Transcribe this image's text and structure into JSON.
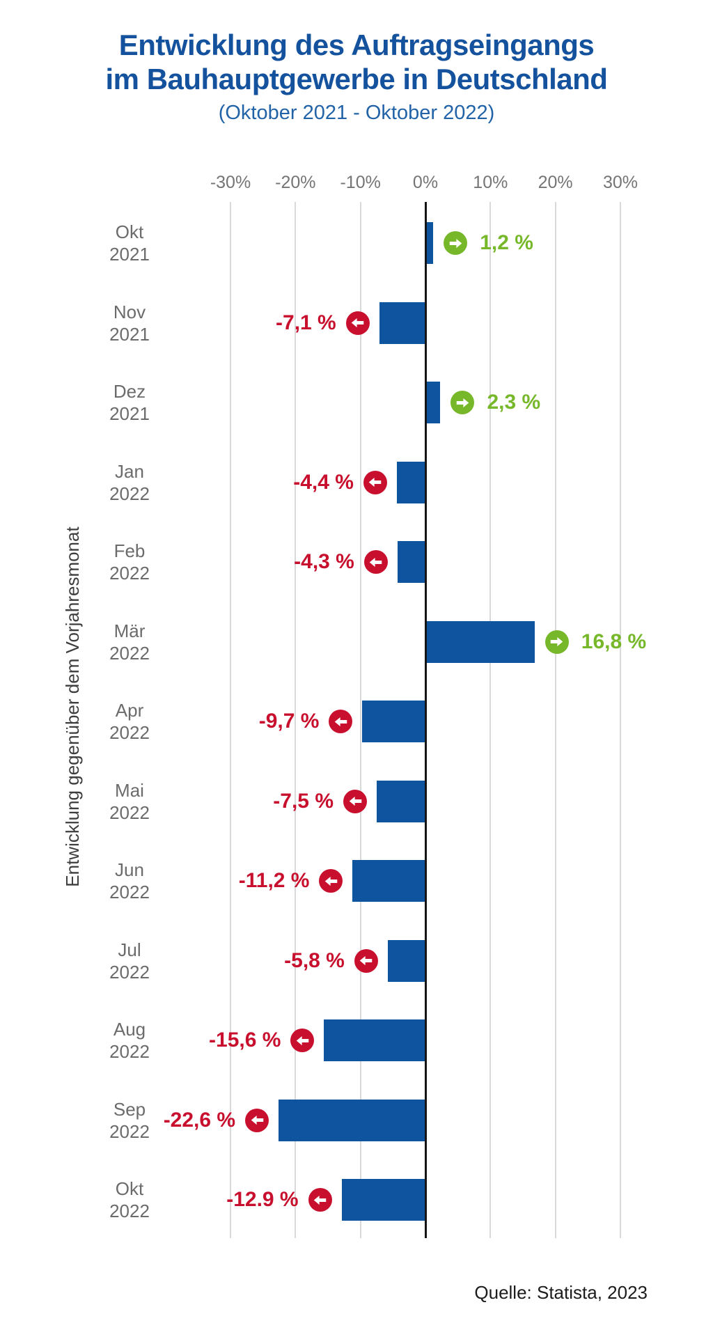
{
  "header": {
    "title_line1": "Entwicklung des Auftragseingangs",
    "title_line2": "im Bauhauptgewerbe in Deutschland",
    "subtitle": "(Oktober 2021 - Oktober 2022)"
  },
  "source": {
    "text": "Quelle: Statista, 2023"
  },
  "chart_data": {
    "type": "bar",
    "orientation": "horizontal",
    "title": "Entwicklung des Auftragseingangs im Bauhauptgewerbe in Deutschland",
    "subtitle": "(Oktober 2021 - Oktober 2022)",
    "ylabel": "Entwicklung gegenüber dem Vorjahresmonat",
    "xlabel": "",
    "xlim": [
      -30,
      30
    ],
    "grid": true,
    "x_ticks": [
      {
        "value": -30,
        "label": "-30%"
      },
      {
        "value": -20,
        "label": "-20%"
      },
      {
        "value": -10,
        "label": "-10%"
      },
      {
        "value": 0,
        "label": "0%"
      },
      {
        "value": 10,
        "label": "10%"
      },
      {
        "value": 20,
        "label": "20%"
      },
      {
        "value": 30,
        "label": "30%"
      }
    ],
    "rows": [
      {
        "month": "Okt",
        "year": "2021",
        "value": 1.2,
        "label": "1,2 %",
        "trend": "positive"
      },
      {
        "month": "Nov",
        "year": "2021",
        "value": -7.1,
        "label": "-7,1 %",
        "trend": "negative"
      },
      {
        "month": "Dez",
        "year": "2021",
        "value": 2.3,
        "label": "2,3 %",
        "trend": "positive"
      },
      {
        "month": "Jan",
        "year": "2022",
        "value": -4.4,
        "label": "-4,4 %",
        "trend": "negative"
      },
      {
        "month": "Feb",
        "year": "2022",
        "value": -4.3,
        "label": "-4,3 %",
        "trend": "negative"
      },
      {
        "month": "Mär",
        "year": "2022",
        "value": 16.8,
        "label": "16,8 %",
        "trend": "positive"
      },
      {
        "month": "Apr",
        "year": "2022",
        "value": -9.7,
        "label": "-9,7 %",
        "trend": "negative"
      },
      {
        "month": "Mai",
        "year": "2022",
        "value": -7.5,
        "label": "-7,5 %",
        "trend": "negative"
      },
      {
        "month": "Jun",
        "year": "2022",
        "value": -11.2,
        "label": "-11,2 %",
        "trend": "negative"
      },
      {
        "month": "Jul",
        "year": "2022",
        "value": -5.8,
        "label": "-5,8 %",
        "trend": "negative"
      },
      {
        "month": "Aug",
        "year": "2022",
        "value": -15.6,
        "label": "-15,6 %",
        "trend": "negative"
      },
      {
        "month": "Sep",
        "year": "2022",
        "value": -22.6,
        "label": "-22,6 %",
        "trend": "negative"
      },
      {
        "month": "Okt",
        "year": "2022",
        "value": -12.9,
        "label": "-12.9 %",
        "trend": "negative"
      }
    ],
    "colors": {
      "bar": "#0f549e",
      "positive": "#76b82a",
      "negative": "#c8102e",
      "gridline": "#d9d9d9",
      "zero_line": "#151515",
      "title": "#14529e",
      "subtitle": "#2263a8",
      "axis_text": "#757575",
      "row_label_text": "#6b6b6b"
    },
    "legend": null
  }
}
